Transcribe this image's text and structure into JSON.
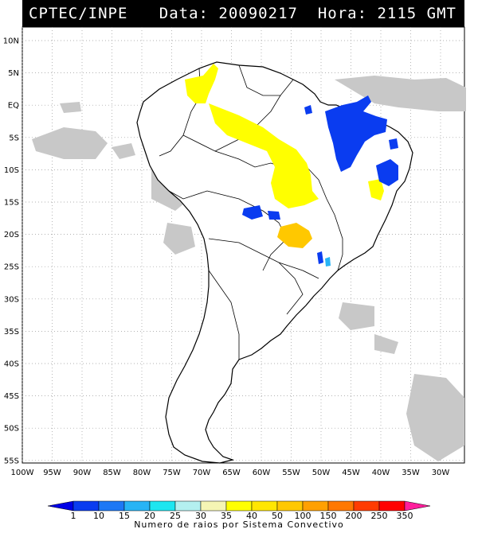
{
  "header": {
    "source": "CPTEC/INPE",
    "date_text": "Data: 20090217",
    "time_text": "Hora: 2115 GMT"
  },
  "map": {
    "lat_labels": [
      "10N",
      "5N",
      "EQ",
      "5S",
      "10S",
      "15S",
      "20S",
      "25S",
      "30S",
      "35S",
      "40S",
      "45S",
      "50S",
      "55S"
    ],
    "lon_labels": [
      "100W",
      "95W",
      "90W",
      "85W",
      "80W",
      "75W",
      "70W",
      "65W",
      "60W",
      "55W",
      "50W",
      "45W",
      "40W",
      "35W",
      "30W"
    ],
    "land_fill": "#ffffff",
    "coast_color": "#000000",
    "cloud_color": "#c8c8c8"
  },
  "legend": {
    "values": [
      "1",
      "10",
      "15",
      "20",
      "25",
      "30",
      "35",
      "40",
      "50",
      "100",
      "150",
      "200",
      "250",
      "350"
    ],
    "colors": [
      "#0000e6",
      "#0a3cf0",
      "#1e78f5",
      "#28b4f5",
      "#1ee6f0",
      "#b4f0f0",
      "#f5f5b4",
      "#ffff00",
      "#ffe600",
      "#ffc800",
      "#ffa000",
      "#ff7800",
      "#ff3c00",
      "#ff0000",
      "#ff1e9c"
    ],
    "caption": "Numero de raios por Sistema Convectivo"
  }
}
